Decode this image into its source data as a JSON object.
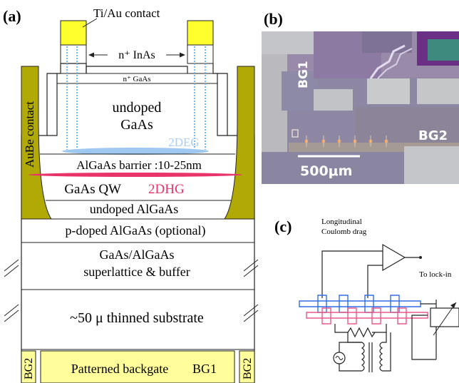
{
  "panels": {
    "a": "(a)",
    "b": "(b)",
    "c": "(c)"
  },
  "panel_a": {
    "contact_label": "Ti/Au contact",
    "inas_label": "n⁺ InAs",
    "gaas_cap_label": "n⁺ GaAs",
    "undoped_gaas_line1": "undoped",
    "undoped_gaas_line2": "GaAs",
    "two_deg": "2DEG",
    "barrier": "AlGaAs barrier :10-25nm",
    "qw": "GaAs QW",
    "two_dhg": "2DHG",
    "undoped_algaas": "undoped AlGaAs",
    "pdoped_algaas": "p-doped AlGaAs (optional)",
    "superlattice_line1": "GaAs/AlGaAs",
    "superlattice_line2": "superlattice & buffer",
    "substrate": "~50 μ  thinned substrate",
    "backgate": "Patterned backgate",
    "bg1": "BG1",
    "bg2_left": "BG2",
    "bg2_right": "BG2",
    "aube": "AuBe contact"
  },
  "panel_b": {
    "bg1": "BG1",
    "bg2": "BG2",
    "scale": "500μm"
  },
  "panel_c": {
    "title_line1": "Longitudinal",
    "title_line2": "Coulomb drag",
    "lockin": "To lock-in"
  },
  "colors": {
    "contact_yellow": "#ffff2e",
    "aube_olive": "#b1a905",
    "backgate_yellow": "#fffe9b",
    "two_deg_blue": "#9fc8f0",
    "two_dhg_pink": "#e8336b",
    "electron_layer_blue": "#2f6ee8",
    "hole_layer_pink": "#e85a8a"
  }
}
